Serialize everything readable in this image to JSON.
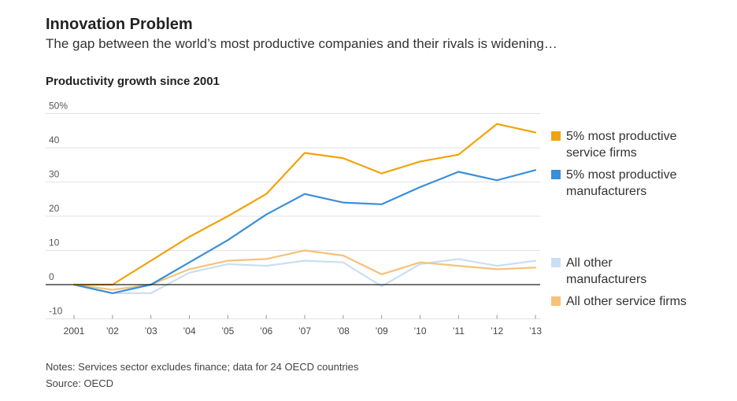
{
  "header": {
    "title": "Innovation Problem",
    "subtitle": "The gap between the world’s most productive companies and their rivals is widening…"
  },
  "chart_data": {
    "type": "line",
    "title": "Productivity growth since 2001",
    "xlabel": "",
    "ylabel": "",
    "categories": [
      "2001",
      "’02",
      "’03",
      "’04",
      "’05",
      "’06",
      "’07",
      "’08",
      "’09",
      "’10",
      "’11",
      "’12",
      "’13"
    ],
    "y_ticks": [
      -10,
      0,
      10,
      20,
      30,
      40,
      50
    ],
    "y_tick_labels": [
      "-10",
      "0",
      "10",
      "20",
      "30",
      "40",
      "50%"
    ],
    "ylim": [
      -10,
      50
    ],
    "grid": true,
    "legend_position": "right",
    "series": [
      {
        "name": "5% most productive service firms",
        "color": "#f0a30a",
        "values": [
          0,
          0,
          7,
          14,
          20,
          26.5,
          38.5,
          37,
          32.5,
          36,
          38,
          47,
          44.5
        ]
      },
      {
        "name": "5% most productive manufacturers",
        "color": "#3a8fd9",
        "values": [
          0,
          -2.5,
          0,
          6.5,
          13,
          20.5,
          26.5,
          24,
          23.5,
          28.5,
          33,
          30.5,
          33.5
        ]
      },
      {
        "name": "All other manufacturers",
        "color": "#c9dff3",
        "values": [
          0,
          -2.5,
          -2.5,
          3.5,
          6,
          5.5,
          7,
          6.5,
          -0.5,
          6,
          7.5,
          5.5,
          7
        ]
      },
      {
        "name": "All other service firms",
        "color": "#f5c27a",
        "values": [
          0,
          -1.5,
          0,
          4.5,
          7,
          7.5,
          10,
          8.5,
          3,
          6.5,
          5.5,
          4.5,
          5
        ]
      }
    ],
    "legend": [
      {
        "lines": [
          "5% most productive",
          "service firms"
        ],
        "color": "#f0a30a"
      },
      {
        "lines": [
          "5% most productive",
          "manufacturers"
        ],
        "color": "#3a8fd9"
      },
      {
        "lines": [
          "All other",
          "manufacturers"
        ],
        "color": "#c9dff3"
      },
      {
        "lines": [
          "All other service firms"
        ],
        "color": "#f5c27a"
      }
    ]
  },
  "footer": {
    "notes": "Notes: Services sector excludes finance; data for 24 OECD countries",
    "source": "Source: OECD"
  }
}
